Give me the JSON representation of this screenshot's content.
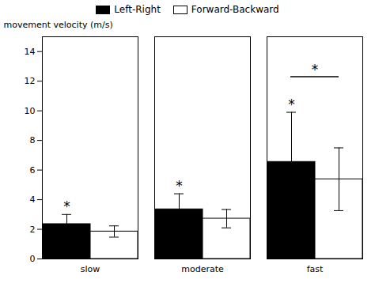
{
  "chart_data": {
    "type": "bar",
    "categories": [
      "slow",
      "moderate",
      "fast"
    ],
    "series": [
      {
        "name": "Left-Right",
        "color": "#000000",
        "values": [
          2.35,
          3.35,
          6.55
        ],
        "errors": [
          0.65,
          1.05,
          3.35
        ]
      },
      {
        "name": "Forward-Backward",
        "color": "#ffffff",
        "values": [
          1.85,
          2.72,
          5.38
        ],
        "errors": [
          0.38,
          0.62,
          2.12
        ]
      }
    ],
    "ylabel": "movement velocity (m/s)",
    "ylim": [
      0,
      15
    ],
    "yticks": [
      0,
      2,
      4,
      6,
      8,
      10,
      12,
      14
    ],
    "legend": "top",
    "grid": false,
    "annotations": [
      {
        "text": "*",
        "category": "slow",
        "series": "Left-Right"
      },
      {
        "text": "*",
        "category": "moderate",
        "series": "Left-Right"
      },
      {
        "text": "*",
        "category": "fast",
        "series": "Left-Right"
      },
      {
        "text": "*",
        "category": "fast",
        "y": 12.3,
        "bracket": [
          "Left-Right",
          "Forward-Backward"
        ]
      }
    ]
  }
}
